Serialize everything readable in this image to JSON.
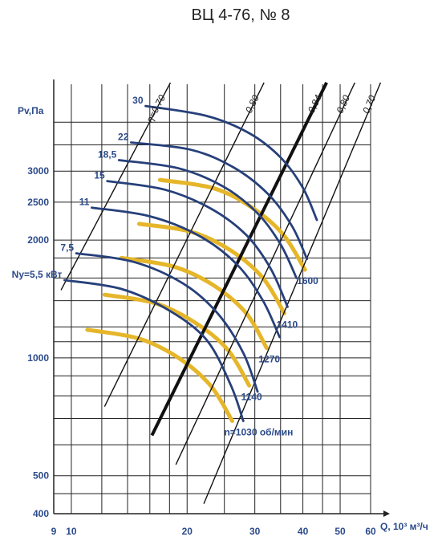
{
  "chart_data": {
    "type": "line",
    "title": "ВЦ 4-76, № 8",
    "ylabel": "Pv,Па",
    "xlabel": "Q, 10³ м³/ч",
    "x_scale": "log",
    "y_scale": "log",
    "xlim": [
      9,
      60
    ],
    "ylim": [
      400,
      5000
    ],
    "x_ticks": [
      {
        "v": 9,
        "label": "9"
      },
      {
        "v": 10,
        "label": "10"
      },
      {
        "v": 20,
        "label": "20"
      },
      {
        "v": 30,
        "label": "30"
      },
      {
        "v": 40,
        "label": "40"
      },
      {
        "v": 50,
        "label": "50"
      },
      {
        "v": 60,
        "label": "60"
      }
    ],
    "y_ticks": [
      {
        "v": 400,
        "label": "400"
      },
      {
        "v": 500,
        "label": "500"
      },
      {
        "v": 1000,
        "label": "1000"
      },
      {
        "v": 2000,
        "label": "2000"
      },
      {
        "v": 2500,
        "label": "2500"
      },
      {
        "v": 3000,
        "label": "3000"
      }
    ],
    "x_grid": [
      9,
      10,
      12,
      14,
      16,
      18,
      20,
      25,
      30,
      35,
      40,
      45,
      50,
      60
    ],
    "y_grid": [
      400,
      450,
      500,
      600,
      700,
      800,
      900,
      1000,
      1100,
      1200,
      1400,
      1600,
      1800,
      2000,
      2500,
      3000,
      3500,
      4000
    ],
    "grid": true,
    "speed_series": [
      {
        "name": "n=1030 об/мин",
        "points": [
          [
            11.0,
            1180
          ],
          [
            15.0,
            1120
          ],
          [
            19.0,
            1000
          ],
          [
            23.0,
            850
          ],
          [
            26.2,
            690
          ]
        ]
      },
      {
        "name": "1140",
        "points": [
          [
            12.2,
            1450
          ],
          [
            16.5,
            1380
          ],
          [
            21.0,
            1230
          ],
          [
            25.5,
            1050
          ],
          [
            29.0,
            850
          ]
        ]
      },
      {
        "name": "1270",
        "points": [
          [
            13.5,
            1800
          ],
          [
            18.5,
            1710
          ],
          [
            23.5,
            1530
          ],
          [
            28.5,
            1300
          ],
          [
            32.2,
            1060
          ]
        ]
      },
      {
        "name": "1410",
        "points": [
          [
            15.0,
            2200
          ],
          [
            20.5,
            2100
          ],
          [
            26.0,
            1880
          ],
          [
            31.5,
            1600
          ],
          [
            35.8,
            1300
          ]
        ]
      },
      {
        "name": "1600",
        "points": [
          [
            17.0,
            2850
          ],
          [
            23.5,
            2710
          ],
          [
            29.5,
            2420
          ],
          [
            35.5,
            2070
          ],
          [
            40.5,
            1680
          ]
        ]
      }
    ],
    "efficiency_lines": [
      {
        "name": "η=0,70",
        "points": [
          [
            9.4,
            1490
          ],
          [
            18.1,
            5050
          ]
        ],
        "bold": false
      },
      {
        "name": "0,80",
        "points": [
          [
            12.2,
            751
          ],
          [
            31.7,
            5050
          ]
        ],
        "bold": false
      },
      {
        "name": "0,84",
        "points": [
          [
            16.2,
            634
          ],
          [
            46.1,
            5050
          ]
        ],
        "bold": true
      },
      {
        "name": "0,80",
        "points": [
          [
            18.7,
            534
          ],
          [
            54.6,
            5050
          ]
        ],
        "bold": false
      },
      {
        "name": "0,70",
        "points": [
          [
            22.1,
            424
          ],
          [
            63.7,
            5050
          ]
        ],
        "bold": false
      }
    ],
    "power_curves": [
      {
        "name": "Ny=5,5 кВт",
        "points": [
          [
            9.6,
            1580
          ],
          [
            13.5,
            1500
          ],
          [
            18.0,
            1320
          ],
          [
            22.5,
            1110
          ],
          [
            26.0,
            850
          ],
          [
            28.0,
            690
          ]
        ]
      },
      {
        "name": "7,5",
        "points": [
          [
            10.3,
            1850
          ],
          [
            14.5,
            1760
          ],
          [
            19.5,
            1550
          ],
          [
            24.0,
            1300
          ],
          [
            28.0,
            1030
          ],
          [
            30.5,
            820
          ]
        ]
      },
      {
        "name": "11",
        "points": [
          [
            11.3,
            2420
          ],
          [
            16.0,
            2300
          ],
          [
            21.5,
            2050
          ],
          [
            27.0,
            1730
          ],
          [
            31.5,
            1400
          ],
          [
            34.8,
            1130
          ]
        ]
      },
      {
        "name": "15",
        "points": [
          [
            12.4,
            2830
          ],
          [
            17.5,
            2690
          ],
          [
            23.0,
            2410
          ],
          [
            28.5,
            2060
          ],
          [
            33.0,
            1690
          ],
          [
            36.5,
            1350
          ]
        ]
      },
      {
        "name": "18,5",
        "points": [
          [
            13.3,
            3200
          ],
          [
            19.0,
            3050
          ],
          [
            25.0,
            2730
          ],
          [
            30.5,
            2340
          ],
          [
            35.0,
            1950
          ],
          [
            38.5,
            1600
          ]
        ]
      },
      {
        "name": "22",
        "points": [
          [
            14.3,
            3550
          ],
          [
            20.5,
            3400
          ],
          [
            26.5,
            3060
          ],
          [
            32.5,
            2620
          ],
          [
            37.5,
            2170
          ],
          [
            41.0,
            1790
          ]
        ]
      },
      {
        "name": "30",
        "points": [
          [
            15.6,
            4400
          ],
          [
            22.5,
            4150
          ],
          [
            29.0,
            3750
          ],
          [
            35.0,
            3250
          ],
          [
            40.0,
            2720
          ],
          [
            43.5,
            2250
          ]
        ]
      }
    ]
  }
}
